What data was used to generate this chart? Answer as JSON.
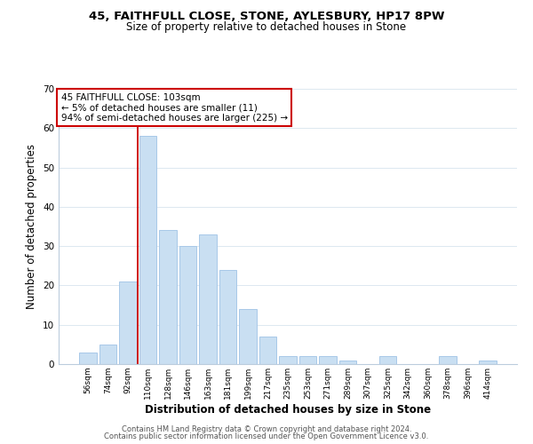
{
  "title": "45, FAITHFULL CLOSE, STONE, AYLESBURY, HP17 8PW",
  "subtitle": "Size of property relative to detached houses in Stone",
  "xlabel": "Distribution of detached houses by size in Stone",
  "ylabel": "Number of detached properties",
  "footnote1": "Contains HM Land Registry data © Crown copyright and database right 2024.",
  "footnote2": "Contains public sector information licensed under the Open Government Licence v3.0.",
  "bins": [
    "56sqm",
    "74sqm",
    "92sqm",
    "110sqm",
    "128sqm",
    "146sqm",
    "163sqm",
    "181sqm",
    "199sqm",
    "217sqm",
    "235sqm",
    "253sqm",
    "271sqm",
    "289sqm",
    "307sqm",
    "325sqm",
    "342sqm",
    "360sqm",
    "378sqm",
    "396sqm",
    "414sqm"
  ],
  "values": [
    3,
    5,
    21,
    58,
    34,
    30,
    33,
    24,
    14,
    7,
    2,
    2,
    2,
    1,
    0,
    2,
    0,
    0,
    2,
    0,
    1
  ],
  "bar_color": "#c9dff2",
  "bar_edge_color": "#a8c8e8",
  "vline_x_index": 3,
  "vline_color": "#cc0000",
  "annotation_line1": "45 FAITHFULL CLOSE: 103sqm",
  "annotation_line2": "← 5% of detached houses are smaller (11)",
  "annotation_line3": "94% of semi-detached houses are larger (225) →",
  "annotation_box_edge_color": "#cc0000",
  "ylim": [
    0,
    70
  ],
  "yticks": [
    0,
    10,
    20,
    30,
    40,
    50,
    60,
    70
  ],
  "background_color": "#ffffff",
  "grid_color": "#dce8f0",
  "title_fontsize": 9.5,
  "subtitle_fontsize": 8.5,
  "annotation_fontsize": 7.5,
  "xlabel_fontsize": 8.5,
  "ylabel_fontsize": 8.5,
  "footnote_fontsize": 6.0
}
